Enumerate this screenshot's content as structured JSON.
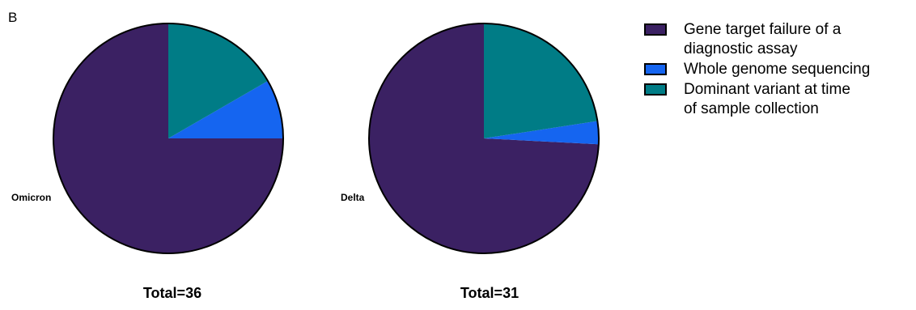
{
  "panel_letter": "B",
  "colors": {
    "gene_target_failure": "#3b2163",
    "whole_genome_sequencing": "#1565f0",
    "dominant_variant": "#007c86"
  },
  "legend": [
    {
      "label": "Gene target failure of a\ndiagnostic assay",
      "color": "#3b2163"
    },
    {
      "label": "Whole genome sequencing",
      "color": "#1565f0"
    },
    {
      "label": "Dominant variant at time\nof sample collection",
      "color": "#007c86"
    }
  ],
  "chart_data": [
    {
      "type": "pie",
      "label": "Omicron",
      "total_label": "Total=36",
      "slices": [
        {
          "name": "Gene target failure of a diagnostic assay",
          "value": 27,
          "color": "#3b2163"
        },
        {
          "name": "Whole genome sequencing",
          "value": 3,
          "color": "#1565f0"
        },
        {
          "name": "Dominant variant at time of sample collection",
          "value": 6,
          "color": "#007c86"
        }
      ]
    },
    {
      "type": "pie",
      "label": "Delta",
      "total_label": "Total=31",
      "slices": [
        {
          "name": "Gene target failure of a diagnostic assay",
          "value": 23,
          "color": "#3b2163"
        },
        {
          "name": "Whole genome sequencing",
          "value": 1,
          "color": "#1565f0"
        },
        {
          "name": "Dominant variant at time of sample collection",
          "value": 7,
          "color": "#007c86"
        }
      ]
    }
  ]
}
